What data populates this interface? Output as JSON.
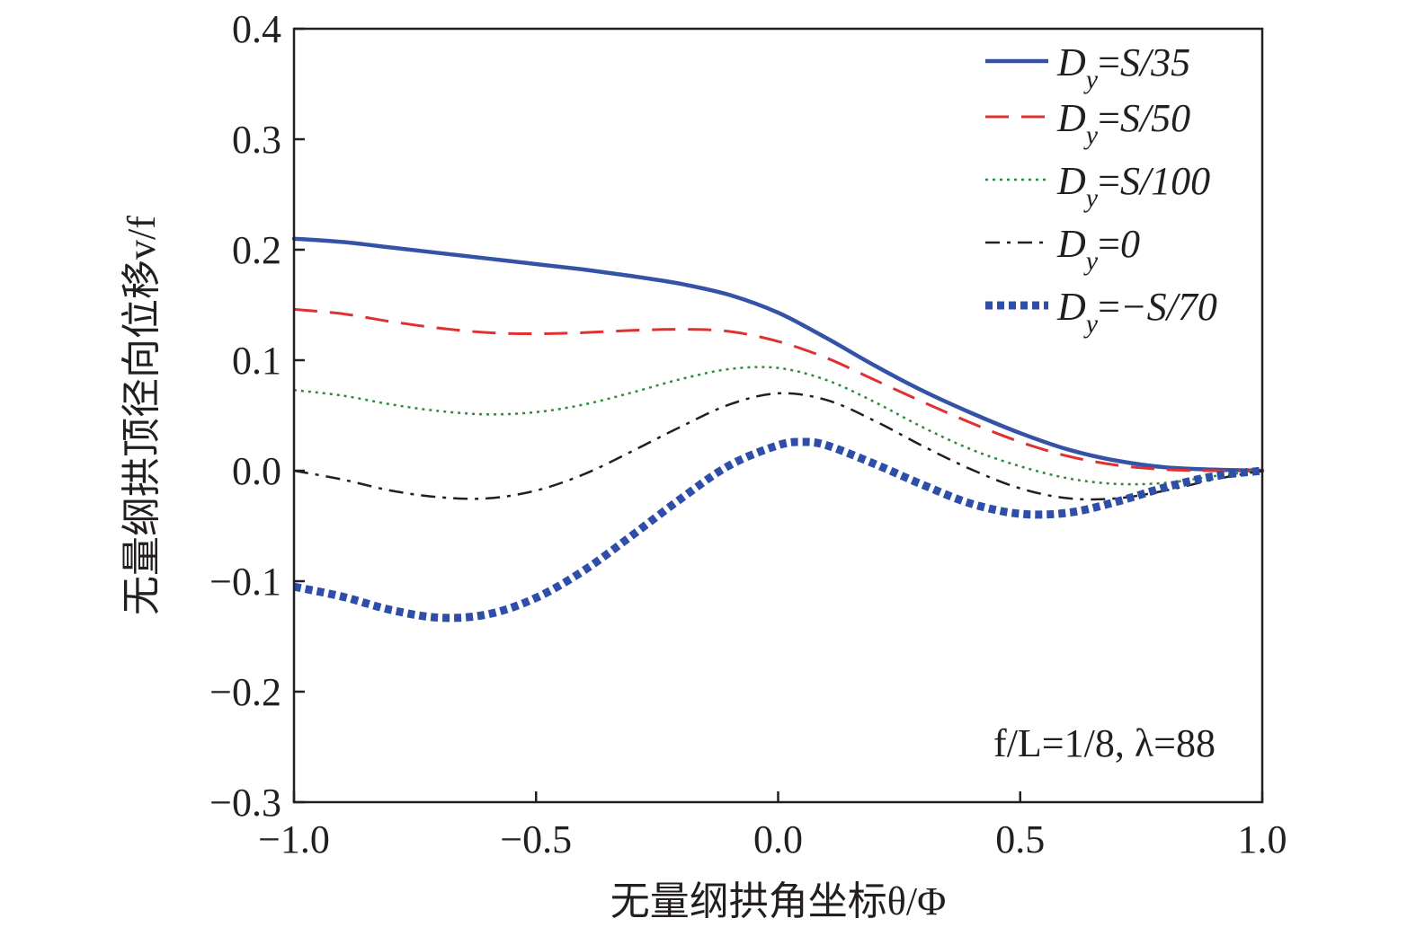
{
  "chart_data": {
    "type": "line",
    "xlabel": "无量纲拱角坐标θ/Φ",
    "ylabel": "无量纲拱顶径向位移v/f",
    "xlim": [
      -1.0,
      1.0
    ],
    "ylim": [
      -0.3,
      0.4
    ],
    "x_ticks": [
      "−1.0",
      "−0.5",
      "0.0",
      "0.5",
      "1.0"
    ],
    "y_ticks": [
      "−0.3",
      "−0.2",
      "−0.1",
      "0.0",
      "0.1",
      "0.2",
      "0.3",
      "0.4"
    ],
    "grid": false,
    "legend_position": "top-right",
    "annotation": "f/L=1/8, λ=88",
    "series": [
      {
        "name": "Dy=S/35",
        "legend": {
          "base": "D",
          "sub": "y",
          "eq": "=",
          "rest": "S/35"
        },
        "color": "#3453a6",
        "style": "solid",
        "x": [
          -1.0,
          -0.9,
          -0.8,
          -0.7,
          -0.6,
          -0.5,
          -0.4,
          -0.3,
          -0.2,
          -0.1,
          0.0,
          0.1,
          0.2,
          0.3,
          0.4,
          0.5,
          0.6,
          0.7,
          0.8,
          0.9,
          1.0
        ],
        "y": [
          0.21,
          0.207,
          0.202,
          0.197,
          0.192,
          0.187,
          0.182,
          0.176,
          0.169,
          0.159,
          0.143,
          0.12,
          0.095,
          0.072,
          0.052,
          0.034,
          0.019,
          0.009,
          0.003,
          0.001,
          0.0
        ]
      },
      {
        "name": "Dy=S/50",
        "legend": {
          "base": "D",
          "sub": "y",
          "eq": "=",
          "rest": "S/50"
        },
        "color": "#e03131",
        "style": "dashed",
        "x": [
          -1.0,
          -0.9,
          -0.8,
          -0.7,
          -0.6,
          -0.5,
          -0.4,
          -0.3,
          -0.2,
          -0.1,
          0.0,
          0.1,
          0.2,
          0.3,
          0.4,
          0.5,
          0.6,
          0.7,
          0.8,
          0.9,
          1.0
        ],
        "y": [
          0.146,
          0.142,
          0.135,
          0.129,
          0.125,
          0.124,
          0.125,
          0.127,
          0.128,
          0.126,
          0.117,
          0.102,
          0.082,
          0.062,
          0.043,
          0.026,
          0.013,
          0.005,
          0.001,
          0.0,
          0.0
        ]
      },
      {
        "name": "Dy=S/100",
        "legend": {
          "base": "D",
          "sub": "y",
          "eq": "=",
          "rest": "S/100"
        },
        "color": "#2e8b3e",
        "style": "dotted",
        "x": [
          -1.0,
          -0.9,
          -0.8,
          -0.7,
          -0.6,
          -0.5,
          -0.4,
          -0.3,
          -0.2,
          -0.1,
          0.0,
          0.1,
          0.2,
          0.3,
          0.4,
          0.5,
          0.6,
          0.7,
          0.8,
          0.9,
          1.0
        ],
        "y": [
          0.073,
          0.068,
          0.06,
          0.054,
          0.051,
          0.053,
          0.06,
          0.071,
          0.083,
          0.092,
          0.093,
          0.082,
          0.062,
          0.039,
          0.019,
          0.004,
          -0.007,
          -0.012,
          -0.011,
          -0.005,
          0.0
        ]
      },
      {
        "name": "Dy=0",
        "legend": {
          "base": "D",
          "sub": "y",
          "eq": "=",
          "rest": "0"
        },
        "color": "#231f20",
        "style": "dashdot",
        "x": [
          -1.0,
          -0.9,
          -0.8,
          -0.7,
          -0.6,
          -0.5,
          -0.4,
          -0.3,
          -0.2,
          -0.1,
          0.0,
          0.1,
          0.2,
          0.3,
          0.4,
          0.5,
          0.6,
          0.7,
          0.8,
          0.9,
          1.0
        ],
        "y": [
          0.0,
          -0.008,
          -0.018,
          -0.024,
          -0.025,
          -0.018,
          -0.003,
          0.018,
          0.04,
          0.06,
          0.07,
          0.064,
          0.045,
          0.022,
          0.001,
          -0.016,
          -0.025,
          -0.025,
          -0.018,
          -0.008,
          0.0
        ]
      },
      {
        "name": "Dy=−S/70",
        "legend": {
          "base": "D",
          "sub": "y",
          "eq": "=",
          "rest": "−S/70"
        },
        "color": "#2f4ea8",
        "style": "heavy-dotted",
        "x": [
          -1.0,
          -0.9,
          -0.8,
          -0.7,
          -0.6,
          -0.5,
          -0.4,
          -0.3,
          -0.2,
          -0.1,
          0.0,
          0.05,
          0.1,
          0.2,
          0.3,
          0.4,
          0.5,
          0.6,
          0.7,
          0.8,
          0.9,
          1.0
        ],
        "y": [
          -0.105,
          -0.114,
          -0.126,
          -0.133,
          -0.13,
          -0.115,
          -0.09,
          -0.058,
          -0.025,
          0.005,
          0.023,
          0.026,
          0.023,
          0.006,
          -0.013,
          -0.03,
          -0.039,
          -0.038,
          -0.028,
          -0.015,
          -0.005,
          0.0
        ]
      }
    ]
  }
}
